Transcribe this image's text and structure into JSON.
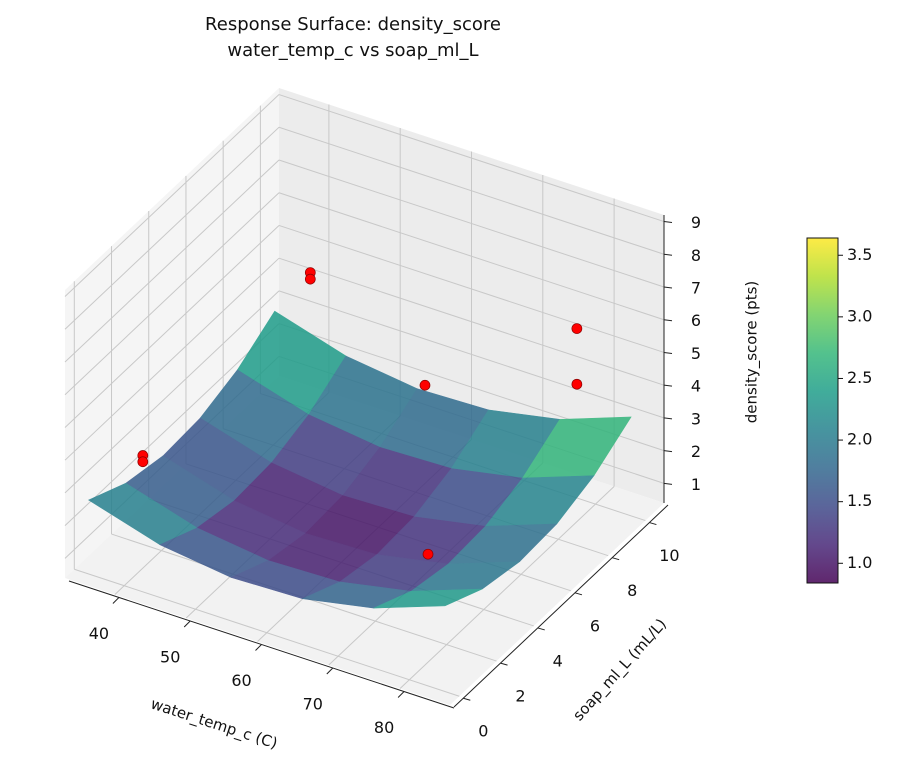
{
  "chart_data": {
    "type": "surface3d",
    "title": "Response Surface: density_score",
    "subtitle": "water_temp_c vs soap_ml_L",
    "x_label": "water_temp_c (C)",
    "y_label": "soap_ml_L (mL/L)",
    "z_label": "density_score (pts)",
    "xlim": [
      33,
      87
    ],
    "ylim": [
      -0.5,
      11
    ],
    "zlim": [
      0.4,
      9.2
    ],
    "xticks": [
      40,
      50,
      60,
      70,
      80
    ],
    "yticks": [
      0,
      2,
      4,
      6,
      8,
      10
    ],
    "zticks": [
      1,
      2,
      3,
      4,
      5,
      6,
      7,
      8,
      9
    ],
    "grid": true,
    "colormap": "viridis",
    "surface_opacity": 0.85,
    "surface": {
      "x": [
        35,
        45,
        55,
        65,
        75,
        85
      ],
      "y": [
        0,
        2,
        4,
        6,
        8,
        10
      ],
      "z": [
        [
          2.66,
          2.1,
          1.86,
          1.94,
          2.34,
          3.06
        ],
        [
          2.01,
          1.45,
          1.21,
          1.29,
          1.69,
          2.41
        ],
        [
          1.73,
          1.17,
          0.93,
          1.01,
          1.41,
          2.13
        ],
        [
          1.8,
          1.24,
          1.0,
          1.08,
          1.48,
          2.2
        ],
        [
          2.23,
          1.67,
          1.43,
          1.51,
          1.91,
          2.63
        ],
        [
          3.02,
          2.46,
          2.22,
          2.3,
          2.7,
          3.42
        ]
      ]
    },
    "scatter": {
      "color": "#ff0000",
      "x": [
        40,
        40,
        40,
        40,
        60,
        80,
        80,
        80
      ],
      "y": [
        1,
        1,
        10,
        10,
        8.5,
        9,
        9,
        1
      ],
      "z": [
        3.84,
        3.65,
        4.6,
        4.4,
        3.4,
        6.3,
        4.6,
        3.7
      ]
    },
    "colorbar": {
      "clim": [
        0.84,
        3.64
      ],
      "ticks": [
        {
          "value": 1,
          "label": "1.0"
        },
        1.5,
        {
          "value": 2,
          "label": "2.0"
        },
        2.5,
        {
          "value": 3,
          "label": "3.0"
        },
        3.5
      ]
    }
  }
}
